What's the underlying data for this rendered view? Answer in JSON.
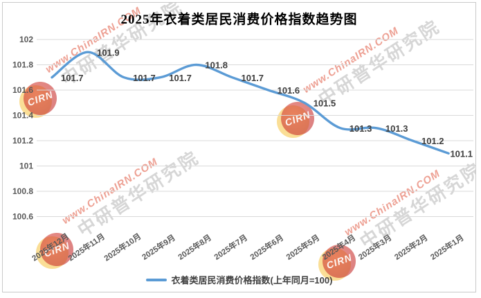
{
  "title": "2025年衣着类居民消费价格指数趋势图",
  "legend": {
    "label": "衣着类居民消费价格指数(上年同月=100)",
    "line_color": "#5B9BD5"
  },
  "watermark": {
    "url_text": "www.ChinaIRN.COM",
    "company_text": "中研普华研究院",
    "logo_text": "CIRN"
  },
  "colors": {
    "line": "#5B9BD5",
    "gridline": "#D9D9D9",
    "tick_label": "#595959",
    "data_label": "#3d3d3d",
    "frame_border": "#c9c9c9"
  },
  "chart_data": {
    "type": "line",
    "title": "2025年衣着类居民消费价格指数趋势图",
    "xlabel": "",
    "ylabel": "",
    "categories": [
      "2025年12月",
      "2025年11月",
      "2025年10月",
      "2025年9月",
      "2025年8月",
      "2025年7月",
      "2025年6月",
      "2025年5月",
      "2025年4月",
      "2025年3月",
      "2025年2月",
      "2025年1月"
    ],
    "series": [
      {
        "name": "衣着类居民消费价格指数(上年同月=100)",
        "values": [
          101.7,
          101.9,
          101.7,
          101.7,
          101.8,
          101.7,
          101.6,
          101.5,
          101.3,
          101.3,
          101.2,
          101.1
        ]
      }
    ],
    "ylim": [
      100.6,
      102
    ],
    "yticks": [
      102,
      101.8,
      101.6,
      101.4,
      101.2,
      101,
      100.8,
      100.6
    ],
    "grid": "horizontal",
    "smooth": true,
    "data_labels": true,
    "legend_position": "bottom",
    "line_color": "#5B9BD5"
  }
}
